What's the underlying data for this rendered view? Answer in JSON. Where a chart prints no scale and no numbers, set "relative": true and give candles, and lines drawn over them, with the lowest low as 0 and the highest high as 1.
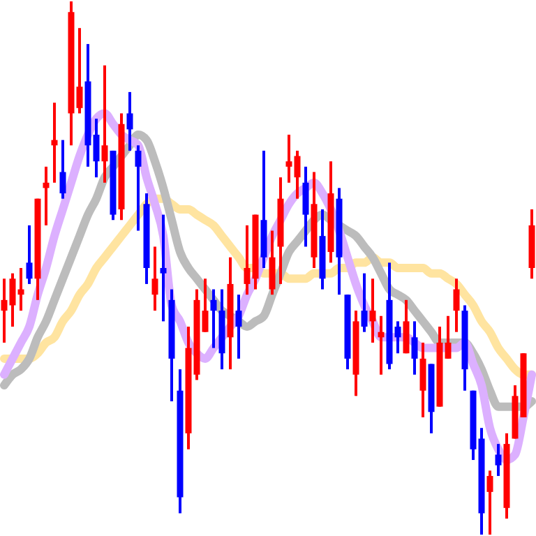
{
  "chart_data": {
    "type": "candlestick",
    "relative": true,
    "categories": [
      null,
      null,
      null,
      null,
      null,
      null,
      null,
      null,
      null,
      null,
      null,
      null,
      null,
      null,
      null,
      null,
      null,
      null,
      null,
      null,
      null,
      null,
      null,
      null,
      null,
      null,
      null,
      null,
      null,
      null,
      null,
      null,
      null,
      null,
      null,
      null,
      null,
      null,
      null,
      null,
      null,
      null,
      null,
      null,
      null,
      null,
      null,
      null,
      null,
      null,
      null,
      null,
      null,
      null,
      null,
      null,
      null,
      null,
      null,
      null,
      null,
      null,
      null,
      null
    ],
    "ohlc": [
      [
        0.42,
        0.48,
        0.36,
        0.44
      ],
      [
        0.43,
        0.49,
        0.39,
        0.48
      ],
      [
        0.45,
        0.5,
        0.42,
        0.46
      ],
      [
        0.51,
        0.58,
        0.47,
        0.48
      ],
      [
        0.48,
        0.63,
        0.44,
        0.63
      ],
      [
        0.65,
        0.69,
        0.58,
        0.66
      ],
      [
        0.73,
        0.81,
        0.66,
        0.74
      ],
      [
        0.68,
        0.74,
        0.63,
        0.64
      ],
      [
        0.79,
        1.0,
        0.73,
        0.98
      ],
      [
        0.8,
        0.95,
        0.79,
        0.84
      ],
      [
        0.85,
        0.92,
        0.69,
        0.73
      ],
      [
        0.75,
        0.78,
        0.67,
        0.7
      ],
      [
        0.7,
        0.88,
        0.66,
        0.73
      ],
      [
        0.72,
        0.72,
        0.59,
        0.6
      ],
      [
        0.61,
        0.79,
        0.59,
        0.77
      ],
      [
        0.79,
        0.83,
        0.72,
        0.76
      ],
      [
        0.72,
        0.73,
        0.57,
        0.69
      ],
      [
        0.62,
        0.64,
        0.47,
        0.5
      ],
      [
        0.45,
        0.54,
        0.42,
        0.48
      ],
      [
        0.5,
        0.6,
        0.4,
        0.49
      ],
      [
        0.44,
        0.46,
        0.25,
        0.33
      ],
      [
        0.27,
        0.31,
        0.04,
        0.07
      ],
      [
        0.19,
        0.39,
        0.16,
        0.35
      ],
      [
        0.3,
        0.46,
        0.29,
        0.44
      ],
      [
        0.38,
        0.48,
        0.38,
        0.42
      ],
      [
        0.44,
        0.46,
        0.35,
        0.42
      ],
      [
        0.42,
        0.46,
        0.31,
        0.34
      ],
      [
        0.37,
        0.52,
        0.31,
        0.47
      ],
      [
        0.42,
        0.45,
        0.33,
        0.39
      ],
      [
        0.47,
        0.58,
        0.45,
        0.5
      ],
      [
        0.48,
        0.6,
        0.46,
        0.6
      ],
      [
        0.59,
        0.72,
        0.5,
        0.52
      ],
      [
        0.46,
        0.57,
        0.45,
        0.52
      ],
      [
        0.54,
        0.67,
        0.47,
        0.63
      ],
      [
        0.69,
        0.75,
        0.66,
        0.7
      ],
      [
        0.67,
        0.72,
        0.63,
        0.71
      ],
      [
        0.66,
        0.69,
        0.54,
        0.6
      ],
      [
        0.52,
        0.68,
        0.5,
        0.62
      ],
      [
        0.56,
        0.61,
        0.46,
        0.48
      ],
      [
        0.53,
        0.7,
        0.51,
        0.64
      ],
      [
        0.63,
        0.65,
        0.45,
        0.52
      ],
      [
        0.45,
        0.45,
        0.31,
        0.33
      ],
      [
        0.3,
        0.42,
        0.26,
        0.4
      ],
      [
        0.42,
        0.49,
        0.38,
        0.39
      ],
      [
        0.4,
        0.48,
        0.36,
        0.42
      ],
      [
        0.37,
        0.41,
        0.3,
        0.38
      ],
      [
        0.44,
        0.51,
        0.31,
        0.32
      ],
      [
        0.39,
        0.4,
        0.34,
        0.37
      ],
      [
        0.34,
        0.44,
        0.34,
        0.4
      ],
      [
        0.37,
        0.4,
        0.3,
        0.33
      ],
      [
        0.27,
        0.36,
        0.22,
        0.33
      ],
      [
        0.32,
        0.32,
        0.19,
        0.23
      ],
      [
        0.24,
        0.39,
        0.24,
        0.36
      ],
      [
        0.33,
        0.41,
        0.33,
        0.36
      ],
      [
        0.42,
        0.48,
        0.38,
        0.46
      ],
      [
        0.42,
        0.43,
        0.27,
        0.31
      ],
      [
        0.27,
        0.27,
        0.14,
        0.16
      ],
      [
        0.18,
        0.2,
        0.0,
        0.04
      ],
      [
        0.08,
        0.12,
        0.0,
        0.11
      ],
      [
        0.15,
        0.17,
        0.11,
        0.13
      ],
      [
        0.05,
        0.19,
        0.03,
        0.17
      ],
      [
        0.18,
        0.28,
        0.18,
        0.26
      ],
      [
        0.22,
        0.34,
        0.22,
        0.34
      ],
      [
        0.5,
        0.61,
        0.48,
        0.58
      ]
    ],
    "colors": [
      "#ff0000",
      "#ff0000",
      "#ff0000",
      "#0000ff",
      "#ff0000",
      "#ff0000",
      "#ff0000",
      "#0000ff",
      "#ff0000",
      "#ff0000",
      "#0000ff",
      "#0000ff",
      "#ff0000",
      "#0000ff",
      "#ff0000",
      "#0000ff",
      "#0000ff",
      "#0000ff",
      "#ff0000",
      "#0000ff",
      "#0000ff",
      "#0000ff",
      "#ff0000",
      "#ff0000",
      "#ff0000",
      "#0000ff",
      "#0000ff",
      "#ff0000",
      "#0000ff",
      "#ff0000",
      "#ff0000",
      "#0000ff",
      "#ff0000",
      "#ff0000",
      "#ff0000",
      "#ff0000",
      "#0000ff",
      "#ff0000",
      "#0000ff",
      "#ff0000",
      "#0000ff",
      "#0000ff",
      "#ff0000",
      "#0000ff",
      "#ff0000",
      "#ff0000",
      "#0000ff",
      "#0000ff",
      "#ff0000",
      "#0000ff",
      "#ff0000",
      "#0000ff",
      "#ff0000",
      "#ff0000",
      "#ff0000",
      "#0000ff",
      "#0000ff",
      "#0000ff",
      "#ff0000",
      "#0000ff",
      "#ff0000",
      "#ff0000",
      "#ff0000",
      "#ff0000"
    ],
    "series": [
      {
        "type": "line",
        "color": "#ffe4a0",
        "values": [
          0.33,
          0.33,
          0.33,
          0.33,
          0.34,
          0.36,
          0.37,
          0.4,
          0.42,
          0.45,
          0.47,
          0.5,
          0.52,
          0.54,
          0.56,
          0.58,
          0.6,
          0.62,
          0.63,
          0.63,
          0.62,
          0.61,
          0.61,
          0.6,
          0.59,
          0.58,
          0.56,
          0.54,
          0.52,
          0.5,
          0.5,
          0.49,
          0.49,
          0.49,
          0.48,
          0.48,
          0.48,
          0.49,
          0.49,
          0.49,
          0.5,
          0.5,
          0.51,
          0.51,
          0.52,
          0.51,
          0.51,
          0.5,
          0.5,
          0.5,
          0.5,
          0.49,
          0.49,
          0.48,
          0.47,
          0.45,
          0.43,
          0.4,
          0.38,
          0.35,
          0.33,
          0.31,
          0.3,
          0.3
        ]
      },
      {
        "type": "line",
        "color": "#bcbcbc",
        "values": [
          0.28,
          0.3,
          0.31,
          0.33,
          0.37,
          0.4,
          0.44,
          0.48,
          0.52,
          0.56,
          0.6,
          0.63,
          0.67,
          0.69,
          0.71,
          0.73,
          0.75,
          0.74,
          0.7,
          0.65,
          0.59,
          0.53,
          0.5,
          0.48,
          0.46,
          0.44,
          0.42,
          0.41,
          0.4,
          0.39,
          0.4,
          0.41,
          0.45,
          0.49,
          0.53,
          0.55,
          0.57,
          0.59,
          0.6,
          0.59,
          0.58,
          0.57,
          0.56,
          0.54,
          0.52,
          0.49,
          0.46,
          0.45,
          0.44,
          0.42,
          0.4,
          0.38,
          0.36,
          0.36,
          0.36,
          0.36,
          0.34,
          0.31,
          0.27,
          0.24,
          0.24,
          0.24,
          0.24,
          0.25
        ]
      },
      {
        "type": "line",
        "color": "#dcb0ff",
        "values": [
          0.3,
          0.33,
          0.36,
          0.39,
          0.45,
          0.5,
          0.56,
          0.61,
          0.66,
          0.71,
          0.75,
          0.78,
          0.79,
          0.77,
          0.75,
          0.74,
          0.73,
          0.67,
          0.62,
          0.56,
          0.43,
          0.4,
          0.36,
          0.34,
          0.33,
          0.35,
          0.37,
          0.39,
          0.41,
          0.45,
          0.48,
          0.52,
          0.56,
          0.59,
          0.62,
          0.64,
          0.65,
          0.66,
          0.64,
          0.61,
          0.57,
          0.52,
          0.47,
          0.43,
          0.4,
          0.37,
          0.37,
          0.37,
          0.37,
          0.36,
          0.35,
          0.35,
          0.35,
          0.35,
          0.35,
          0.36,
          0.32,
          0.28,
          0.2,
          0.16,
          0.14,
          0.15,
          0.22,
          0.3
        ]
      }
    ]
  }
}
